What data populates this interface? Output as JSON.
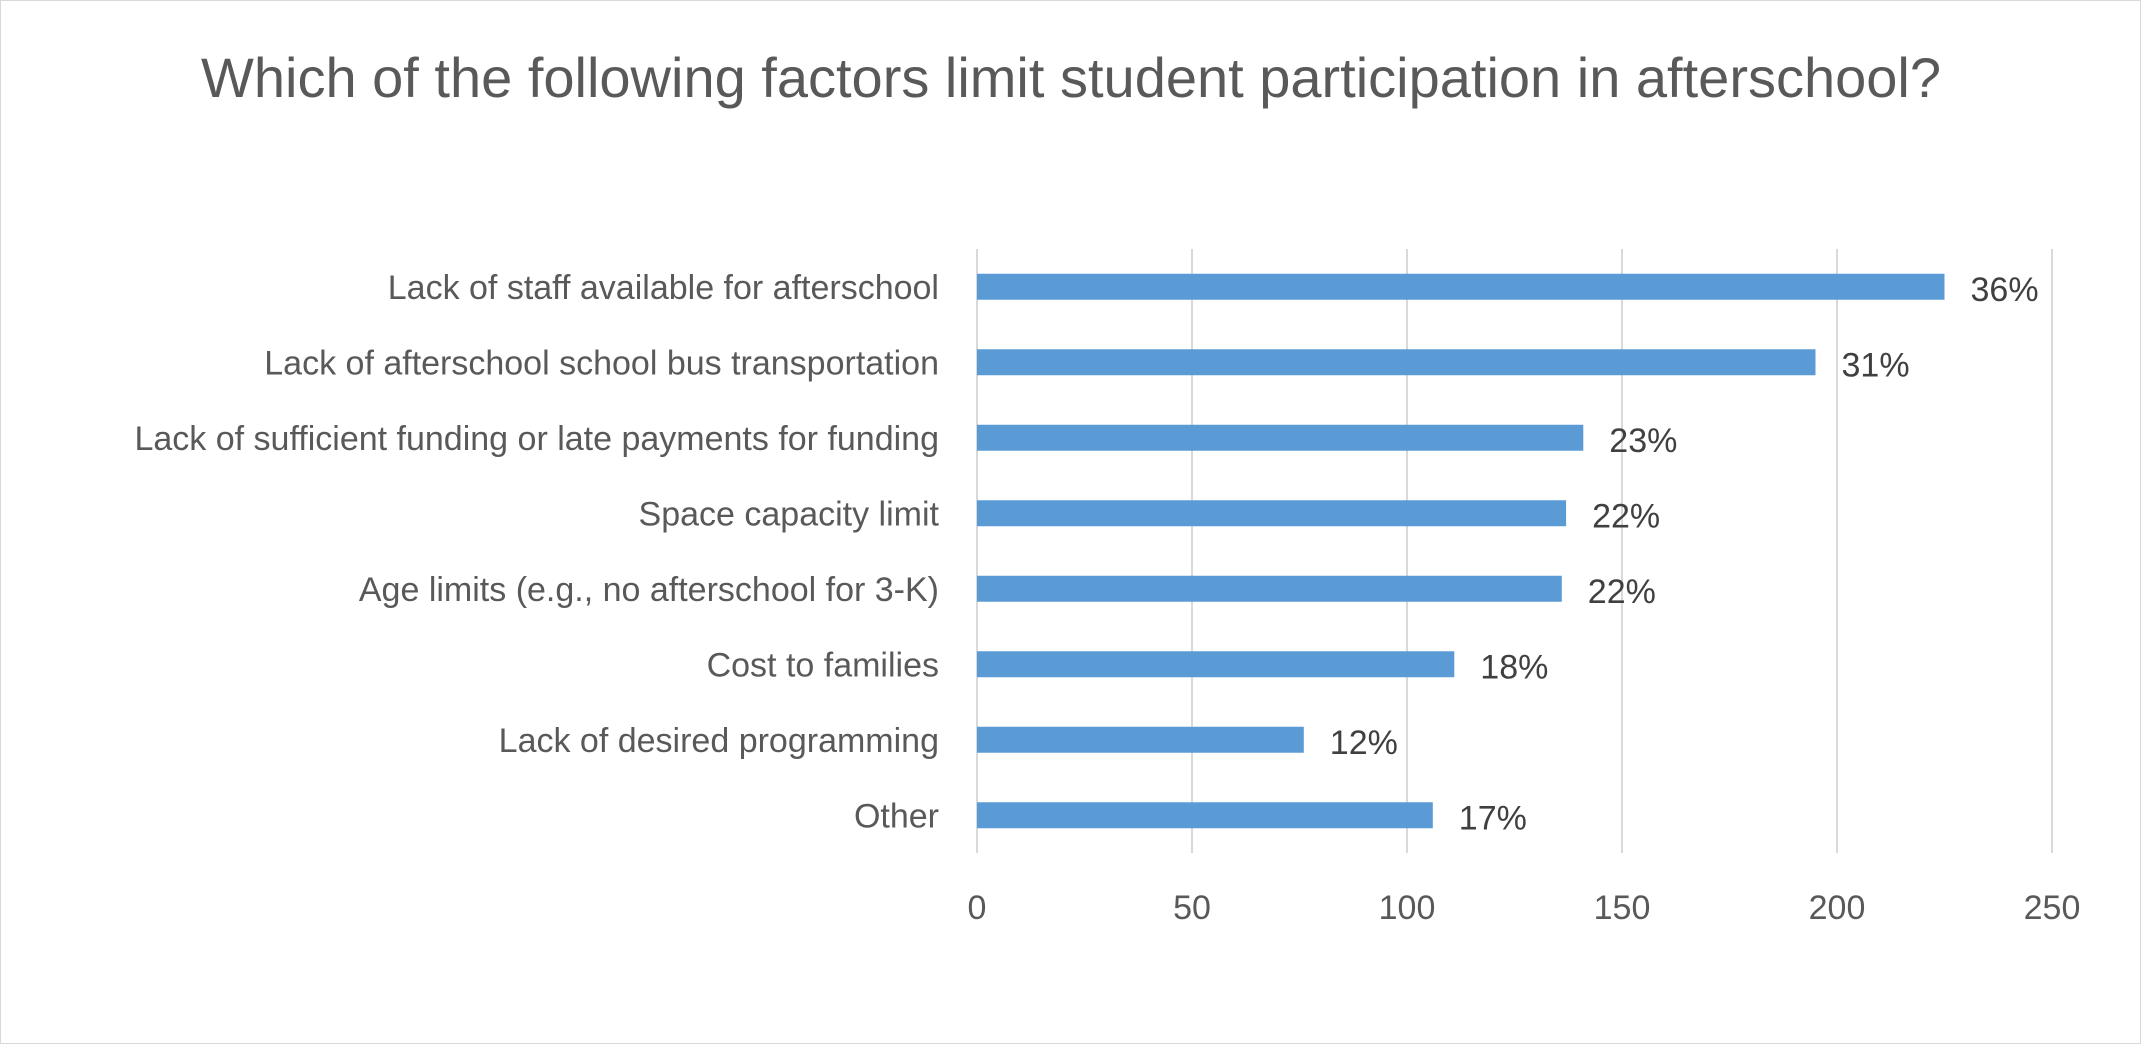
{
  "chart_data": {
    "type": "bar",
    "orientation": "horizontal",
    "title": "Which of the following factors limit student participation in afterschool?",
    "categories": [
      "Lack of staff available for afterschool",
      "Lack of afterschool school bus transportation",
      "Lack of sufficient funding or late payments for funding",
      "Space capacity limit",
      "Age limits (e.g., no afterschool for 3-K)",
      "Cost to families",
      "Lack of desired programming",
      "Other"
    ],
    "values": [
      225,
      195,
      141,
      137,
      136,
      111,
      76,
      106
    ],
    "data_labels": [
      "36%",
      "31%",
      "23%",
      "22%",
      "22%",
      "18%",
      "12%",
      "17%"
    ],
    "xlim": [
      0,
      250
    ],
    "xticks": [
      0,
      50,
      100,
      150,
      200,
      250
    ],
    "grid": "vertical",
    "legend": "none",
    "bar_color": "#5b9bd5"
  }
}
